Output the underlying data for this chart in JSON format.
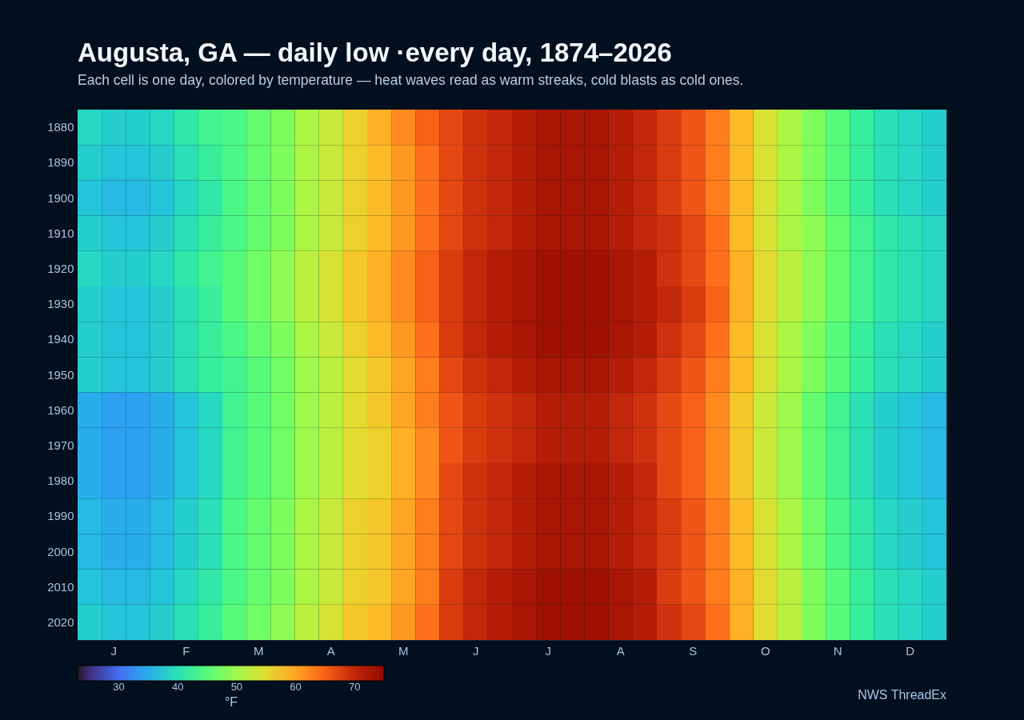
{
  "chart_data": {
    "type": "heatmap",
    "title": "Augusta, GA — daily low ·every day, 1874–2026",
    "subtitle": "Each cell is one day, colored by temperature — heat waves read as warm streaks, cold blasts as cold ones.",
    "categories": [
      null,
      "J",
      null,
      null,
      "F",
      null,
      null,
      "M",
      null,
      null,
      "A",
      null,
      null,
      "M",
      null,
      null,
      "J",
      null,
      null,
      "J",
      null,
      null,
      "A",
      null,
      null,
      "S",
      null,
      null,
      "O",
      null,
      null,
      "N",
      null,
      null,
      "D",
      null
    ],
    "y_categories": [
      "1880",
      "1890",
      "1900",
      "1910",
      "1920",
      "1930",
      "1940",
      "1950",
      "1960",
      "1970",
      "1980",
      "1990",
      "2000",
      "2010",
      "2020"
    ],
    "cells": [
      [
        39,
        38,
        38,
        39,
        41,
        43,
        44,
        46,
        48,
        51,
        53,
        56,
        59,
        62,
        65,
        67,
        69,
        70,
        71,
        72,
        72,
        72,
        71,
        70,
        68,
        66,
        63,
        58,
        54,
        51,
        48,
        45,
        42,
        40,
        39,
        38
      ],
      [
        38,
        37,
        37,
        38,
        40,
        42,
        44,
        46,
        48,
        51,
        53,
        56,
        58,
        61,
        64,
        67,
        69,
        70,
        71,
        72,
        72,
        72,
        71,
        70,
        68,
        66,
        63,
        58,
        54,
        51,
        48,
        45,
        42,
        40,
        39,
        38
      ],
      [
        37,
        36,
        36,
        37,
        39,
        41,
        44,
        46,
        48,
        51,
        53,
        56,
        58,
        61,
        64,
        67,
        69,
        70,
        71,
        72,
        72,
        72,
        71,
        70,
        68,
        66,
        63,
        58,
        54,
        51,
        48,
        45,
        42,
        40,
        39,
        38
      ],
      [
        38,
        37,
        37,
        38,
        40,
        42,
        44,
        46,
        48,
        51,
        53,
        56,
        58,
        61,
        64,
        67,
        69,
        70,
        71,
        72,
        72,
        72,
        71,
        70,
        69,
        67,
        64,
        58,
        54,
        51,
        49,
        46,
        43,
        41,
        40,
        39
      ],
      [
        39,
        38,
        38,
        39,
        41,
        43,
        45,
        47,
        49,
        52,
        54,
        57,
        59,
        62,
        65,
        68,
        70,
        71,
        72,
        73,
        73,
        73,
        72,
        71,
        69,
        67,
        64,
        59,
        55,
        52,
        49,
        46,
        43,
        41,
        40,
        39
      ],
      [
        38,
        37,
        37,
        38,
        40,
        42,
        45,
        47,
        49,
        52,
        54,
        57,
        59,
        62,
        65,
        68,
        70,
        71,
        72,
        73,
        73,
        73,
        72,
        71,
        70,
        68,
        65,
        59,
        55,
        52,
        49,
        46,
        43,
        41,
        40,
        39
      ],
      [
        38,
        37,
        37,
        38,
        40,
        42,
        44,
        46,
        48,
        51,
        53,
        56,
        58,
        61,
        64,
        68,
        70,
        71,
        72,
        73,
        73,
        73,
        72,
        71,
        69,
        67,
        64,
        58,
        54,
        51,
        48,
        45,
        42,
        40,
        39,
        38
      ],
      [
        38,
        37,
        37,
        38,
        40,
        42,
        43,
        45,
        47,
        50,
        52,
        55,
        57,
        60,
        63,
        67,
        69,
        70,
        71,
        72,
        72,
        72,
        71,
        70,
        68,
        66,
        63,
        58,
        54,
        51,
        48,
        45,
        42,
        40,
        39,
        38
      ],
      [
        35,
        34,
        34,
        35,
        37,
        39,
        43,
        45,
        47,
        50,
        52,
        55,
        57,
        60,
        63,
        66,
        68,
        69,
        70,
        71,
        71,
        71,
        70,
        69,
        67,
        65,
        62,
        57,
        53,
        50,
        46,
        43,
        40,
        38,
        37,
        36
      ],
      [
        35,
        34,
        34,
        35,
        37,
        39,
        43,
        45,
        47,
        50,
        52,
        55,
        56,
        59,
        62,
        66,
        68,
        69,
        70,
        71,
        71,
        71,
        70,
        69,
        67,
        65,
        62,
        57,
        53,
        50,
        46,
        43,
        40,
        38,
        37,
        36
      ],
      [
        35,
        34,
        34,
        35,
        37,
        39,
        43,
        45,
        47,
        50,
        52,
        55,
        56,
        59,
        62,
        67,
        69,
        70,
        71,
        72,
        72,
        72,
        71,
        70,
        67,
        65,
        62,
        57,
        53,
        50,
        46,
        43,
        40,
        38,
        37,
        36
      ],
      [
        36,
        35,
        35,
        36,
        38,
        40,
        44,
        46,
        48,
        51,
        53,
        56,
        57,
        60,
        63,
        67,
        69,
        70,
        71,
        72,
        72,
        72,
        71,
        70,
        68,
        66,
        63,
        58,
        54,
        51,
        47,
        44,
        41,
        39,
        38,
        37
      ],
      [
        36,
        35,
        35,
        36,
        38,
        40,
        44,
        46,
        48,
        51,
        53,
        56,
        57,
        60,
        63,
        67,
        69,
        70,
        71,
        72,
        72,
        72,
        71,
        70,
        68,
        66,
        63,
        58,
        54,
        51,
        47,
        44,
        41,
        39,
        38,
        37
      ],
      [
        37,
        36,
        36,
        37,
        39,
        41,
        44,
        46,
        48,
        51,
        53,
        56,
        57,
        60,
        63,
        68,
        70,
        71,
        72,
        73,
        73,
        73,
        72,
        71,
        68,
        66,
        63,
        59,
        55,
        52,
        48,
        45,
        42,
        40,
        39,
        38
      ],
      [
        38,
        37,
        37,
        38,
        40,
        42,
        45,
        47,
        49,
        52,
        54,
        57,
        58,
        61,
        64,
        68,
        70,
        71,
        72,
        73,
        73,
        73,
        72,
        71,
        69,
        67,
        64,
        59,
        55,
        52,
        48,
        45,
        42,
        40,
        39,
        38
      ]
    ],
    "clim": [
      23,
      75
    ],
    "cticks": [
      30,
      40,
      50,
      60,
      70
    ],
    "clabel": "°F",
    "annotations": [
      "NWS ThreadEx"
    ]
  }
}
